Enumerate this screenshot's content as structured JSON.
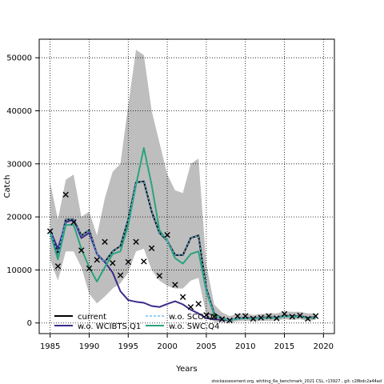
{
  "chart_data": {
    "type": "line",
    "xlabel": "Years",
    "ylabel": "Catch",
    "xlim": [
      1983.6,
      2021.4
    ],
    "ylim": [
      -2000,
      53500
    ],
    "x_ticks": [
      1985,
      1990,
      1995,
      2000,
      2005,
      2010,
      2015,
      2020
    ],
    "y_ticks": [
      0,
      10000,
      20000,
      30000,
      40000,
      50000
    ],
    "x_tick_labels": [
      "1985",
      "1990",
      "1995",
      "2000",
      "2005",
      "2010",
      "2015",
      "2020"
    ],
    "y_tick_labels": [
      "0",
      "10000",
      "20000",
      "30000",
      "40000",
      "50000"
    ],
    "grid": true,
    "legend_placement": "bottom-left",
    "footer": "stockassessment.org, whiting_6a_benchmark_2021 CSL, r13927 , git: c28bdc2a44ad",
    "confidence_band": {
      "color": "#bebebe",
      "x": [
        1985,
        1986,
        1987,
        1988,
        1989,
        1990,
        1991,
        1992,
        1993,
        1994,
        1995,
        1996,
        1997,
        1998,
        1999,
        2000,
        2001,
        2002,
        2003,
        2004,
        2005,
        2006,
        2007,
        2008,
        2009,
        2010,
        2011,
        2012,
        2013,
        2014,
        2015,
        2016,
        2017,
        2018,
        2019
      ],
      "lower": [
        12000,
        8000,
        13500,
        13500,
        10500,
        5500,
        3700,
        5000,
        6500,
        7500,
        9500,
        13500,
        14000,
        10000,
        8000,
        7000,
        6500,
        6500,
        8000,
        8500,
        1500,
        200,
        100,
        50,
        300,
        400,
        300,
        400,
        400,
        500,
        700,
        600,
        700,
        400,
        600
      ],
      "upper": [
        26500,
        19500,
        27000,
        28000,
        20000,
        21000,
        16500,
        23500,
        28500,
        30000,
        41000,
        51500,
        50500,
        40000,
        34000,
        28000,
        25000,
        24500,
        30000,
        31000,
        11000,
        3500,
        2000,
        1300,
        1800,
        1800,
        1500,
        1700,
        1800,
        1800,
        2200,
        2100,
        2100,
        1800,
        1800
      ]
    },
    "series": [
      {
        "name": "current",
        "color": "#000000",
        "style": "solid",
        "x": [
          1985,
          1986,
          1987,
          1988,
          1989,
          1990,
          1991,
          1992,
          1993,
          1994,
          1995,
          1996,
          1997,
          1998,
          1999,
          2000,
          2001,
          2002,
          2003,
          2004,
          2005,
          2006,
          2007,
          2008,
          2009,
          2010,
          2011,
          2012,
          2013,
          2014,
          2015,
          2016,
          2017,
          2018,
          2019
        ],
        "y": [
          17500,
          13000,
          19500,
          19500,
          16500,
          17500,
          13000,
          11500,
          13500,
          14500,
          19500,
          26500,
          26700,
          21000,
          17000,
          15500,
          12800,
          12800,
          16000,
          16500,
          6500,
          1800,
          900,
          500,
          900,
          1000,
          900,
          1000,
          1100,
          1000,
          1400,
          1300,
          1300,
          1000,
          1100
        ]
      },
      {
        "name": "w.o. SCO.Q3",
        "color": "#56b4e9",
        "style": "dashed",
        "x": [
          1985,
          1986,
          1987,
          1988,
          1989,
          1990,
          1991,
          1992,
          1993,
          1994,
          1995,
          1996,
          1997,
          1998,
          1999,
          2000,
          2001,
          2002,
          2003,
          2004,
          2005,
          2006,
          2007,
          2008,
          2009,
          2010,
          2011,
          2012,
          2013,
          2014,
          2015,
          2016,
          2017,
          2018,
          2019
        ],
        "y": [
          17500,
          13000,
          19500,
          19500,
          16500,
          17500,
          13000,
          11500,
          13500,
          14500,
          19500,
          26500,
          26700,
          21000,
          17000,
          15500,
          12800,
          12800,
          16000,
          16500,
          6500,
          1800,
          900,
          500,
          900,
          1000,
          900,
          1000,
          1100,
          1000,
          1400,
          1300,
          1300,
          1000,
          1100
        ]
      },
      {
        "name": "w.o. WCIBTS.Q1",
        "color": "#3a2a8a",
        "style": "solid",
        "x": [
          1985,
          1986,
          1987,
          1988,
          1989,
          1990,
          1991,
          1992,
          1993,
          1994,
          1995,
          1996,
          1997,
          1998,
          1999,
          2000,
          2001,
          2002,
          2003,
          2004,
          2005,
          2006,
          2007,
          2008,
          2009,
          2010,
          2011,
          2012,
          2013,
          2014,
          2015,
          2016,
          2017,
          2018,
          2019
        ],
        "y": [
          17500,
          14000,
          19000,
          19500,
          16000,
          17000,
          13000,
          11500,
          9500,
          6000,
          4300,
          4000,
          3800,
          3200,
          3000,
          3600,
          4100,
          3500,
          2500,
          1800,
          900,
          700,
          600,
          500,
          800,
          900,
          800,
          900,
          1000,
          1000,
          1300,
          1200,
          1200,
          900,
          1000
        ]
      },
      {
        "name": "w.o. SWC.Q4",
        "color": "#2aa37f",
        "style": "solid",
        "x": [
          1985,
          1986,
          1987,
          1988,
          1989,
          1990,
          1991,
          1992,
          1993,
          1994,
          1995,
          1996,
          1997,
          1998,
          1999,
          2000,
          2001,
          2002,
          2003,
          2004,
          2005,
          2006,
          2007,
          2008,
          2009,
          2010,
          2011,
          2012,
          2013,
          2014,
          2015,
          2016,
          2017,
          2018,
          2019
        ],
        "y": [
          17000,
          12000,
          18500,
          18500,
          14000,
          10500,
          7800,
          10500,
          13000,
          13500,
          18500,
          26000,
          33000,
          26000,
          17500,
          15500,
          12200,
          11200,
          13000,
          13500,
          6000,
          1500,
          800,
          500,
          800,
          900,
          800,
          900,
          1000,
          900,
          1300,
          1200,
          1200,
          900,
          1000
        ]
      }
    ],
    "observations": {
      "marker": "x",
      "x": [
        1985,
        1986,
        1987,
        1988,
        1989,
        1990,
        1991,
        1992,
        1993,
        1994,
        1995,
        1996,
        1997,
        1998,
        1999,
        2000,
        2001,
        2002,
        2003,
        2004,
        2005,
        2006,
        2007,
        2008,
        2009,
        2010,
        2011,
        2012,
        2013,
        2014,
        2015,
        2016,
        2017,
        2018,
        2019
      ],
      "y": [
        17300,
        10700,
        24200,
        19000,
        13700,
        10300,
        11900,
        15300,
        11300,
        9000,
        11500,
        15300,
        11600,
        14100,
        8900,
        16600,
        7200,
        4900,
        3000,
        3600,
        1500,
        1200,
        700,
        500,
        1300,
        1300,
        800,
        1000,
        1300,
        900,
        1700,
        1200,
        1400,
        800,
        1300
      ]
    }
  }
}
